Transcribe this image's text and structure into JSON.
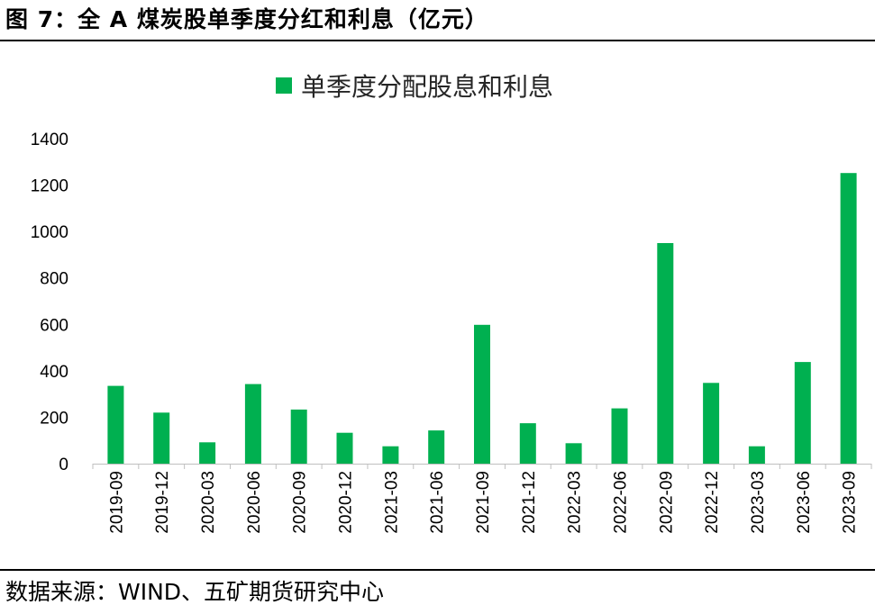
{
  "figure_title": "图 7：全 A 煤炭股单季度分红和利息（亿元）",
  "source_note": "数据来源：WIND、五矿期货研究中心",
  "chart_data": {
    "type": "bar",
    "title": "",
    "xlabel": "",
    "ylabel": "",
    "legend_position": "top",
    "grid": false,
    "ylim": [
      0,
      1400
    ],
    "yticks": [
      0,
      200,
      400,
      600,
      800,
      1000,
      1200,
      1400
    ],
    "categories": [
      "2019-09",
      "2019-12",
      "2020-03",
      "2020-06",
      "2020-09",
      "2020-12",
      "2021-03",
      "2021-06",
      "2021-09",
      "2021-12",
      "2022-03",
      "2022-06",
      "2022-09",
      "2022-12",
      "2023-03",
      "2023-06",
      "2023-09"
    ],
    "series": [
      {
        "name": "单季度分配股息和利息",
        "color": "#00b050",
        "values": [
          335,
          220,
          92,
          343,
          233,
          133,
          75,
          143,
          598,
          174,
          88,
          238,
          950,
          348,
          75,
          438,
          1252
        ]
      }
    ]
  }
}
